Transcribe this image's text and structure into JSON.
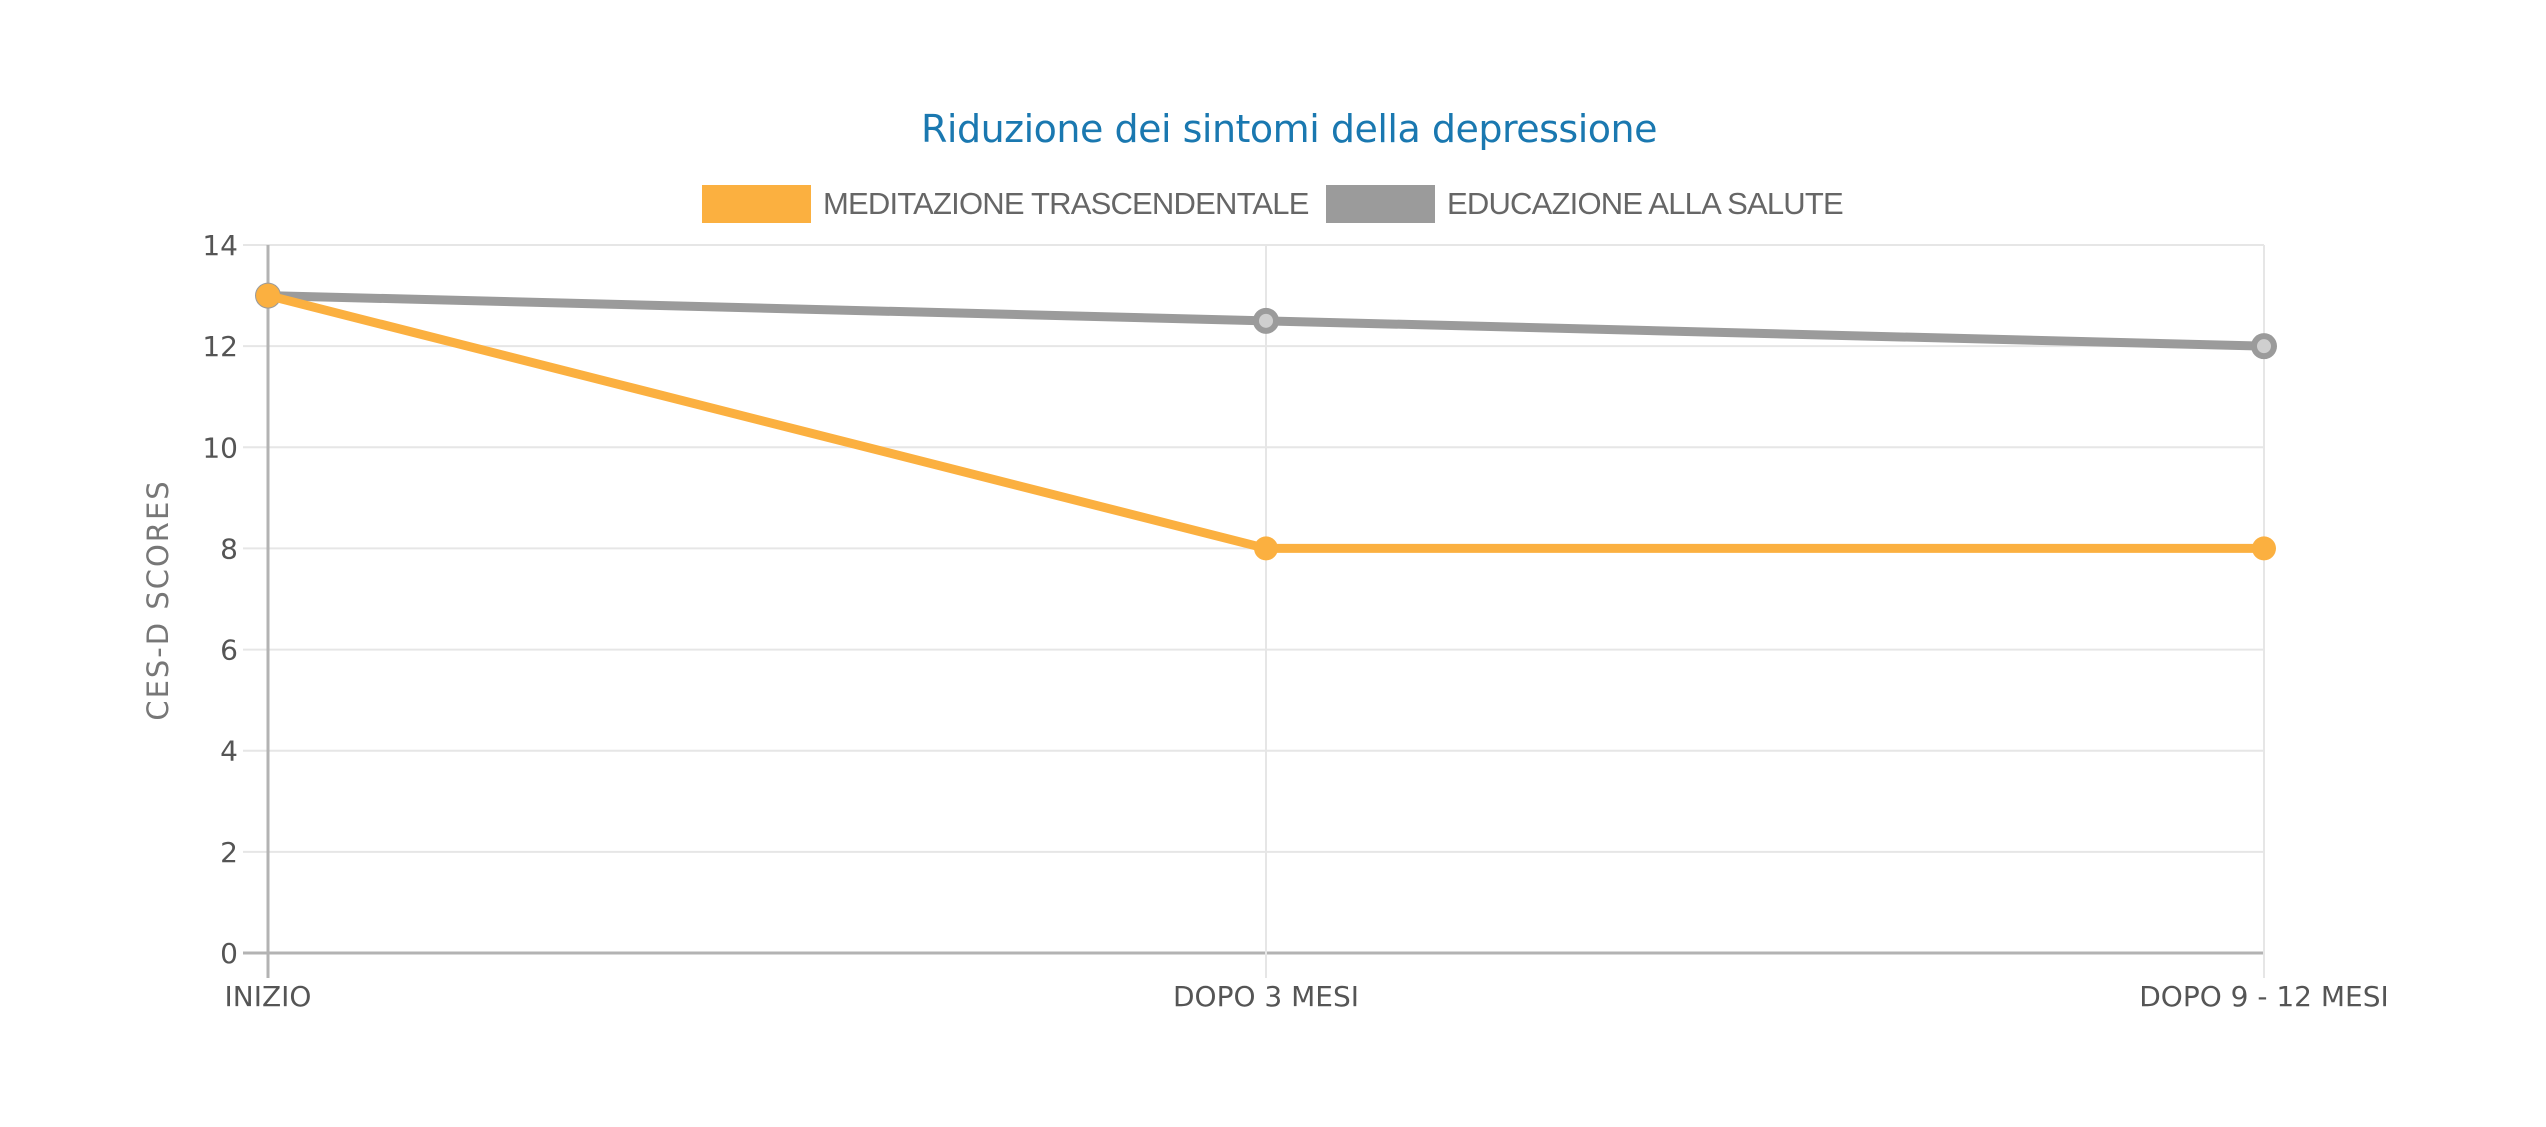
{
  "chart_data": {
    "type": "line",
    "title": "Riduzione dei sintomi della depressione",
    "xlabel": "",
    "ylabel": "CES-D SCORES",
    "categories": [
      "INIZIO",
      "DOPO 3 MESI",
      "DOPO 9 - 12 MESI"
    ],
    "series": [
      {
        "name": "MEDITAZIONE TRASCENDENTALE",
        "color": "#fbb040",
        "values": [
          13,
          8,
          8
        ]
      },
      {
        "name": "EDUCAZIONE ALLA SALUTE",
        "color": "#9b9b9b",
        "values": [
          13,
          12.5,
          12
        ]
      }
    ],
    "ylim": [
      0,
      14
    ],
    "yticks": [
      0,
      2,
      4,
      6,
      8,
      10,
      12,
      14
    ],
    "grid": true,
    "legend_position": "top"
  },
  "colors": {
    "title": "#1a78b0",
    "grid": "#e6e6e6",
    "axis": "#b3b3b3"
  }
}
